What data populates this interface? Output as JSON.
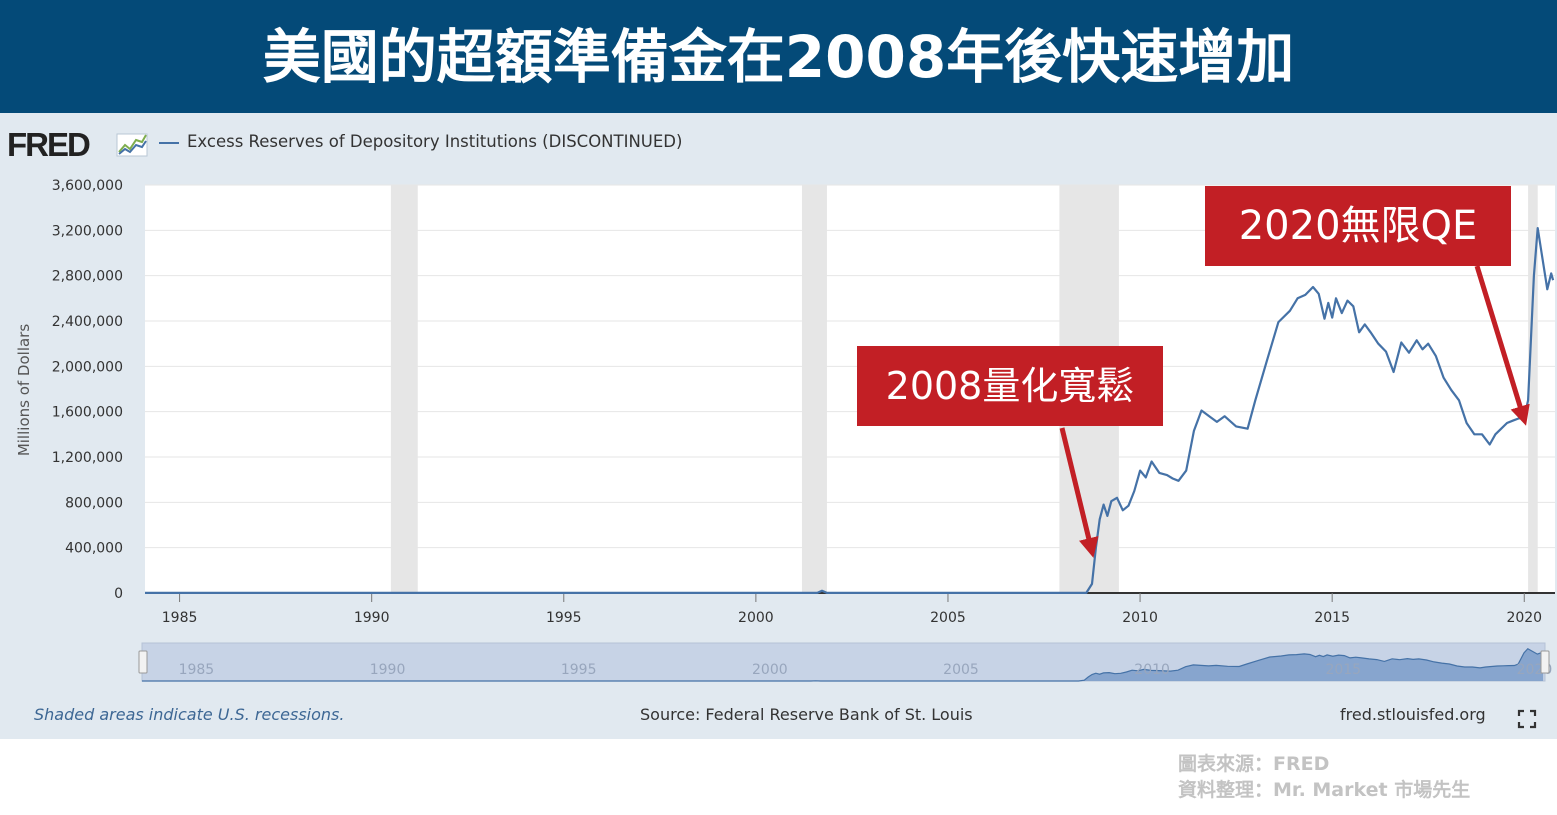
{
  "banner": {
    "title": "美國的超額準備金在2008年後快速增加"
  },
  "header": {
    "logo_text": "FRED",
    "legend_label": "Excess Reserves of Depository Institutions (DISCONTINUED)"
  },
  "annotations": [
    {
      "label": "2008量化寬鬆",
      "points_to_year": 2008.75
    },
    {
      "label": "2020無限QE",
      "points_to_year": 2020.0
    }
  ],
  "footer": {
    "note": "Shaded areas indicate U.S. recessions.",
    "source": "Source: Federal Reserve Bank of St. Louis",
    "site": "fred.stlouisfed.org"
  },
  "credit": {
    "line1": "圖表來源：FRED",
    "line2": "資料整理：Mr. Market 市場先生"
  },
  "colors": {
    "banner": "#044a78",
    "panel": "#e1e9f0",
    "line": "#4572a7",
    "recession": "#e6e6e6",
    "callout": "#c21f25"
  },
  "chart_data": {
    "type": "line",
    "title": "Excess Reserves of Depository Institutions (DISCONTINUED)",
    "xlabel": "",
    "ylabel": "Millions of Dollars",
    "xlim": [
      1984.1,
      2020.8
    ],
    "ylim": [
      0,
      3600000
    ],
    "yticks": [
      0,
      400000,
      800000,
      1200000,
      1600000,
      2000000,
      2400000,
      2800000,
      3200000,
      3600000
    ],
    "ytick_labels": [
      "0",
      "400,000",
      "800,000",
      "1,200,000",
      "1,600,000",
      "2,000,000",
      "2,400,000",
      "2,800,000",
      "3,200,000",
      "3,600,000"
    ],
    "xticks": [
      1985,
      1990,
      1995,
      2000,
      2005,
      2010,
      2015,
      2020
    ],
    "xtick_labels": [
      "1985",
      "1990",
      "1995",
      "2000",
      "2005",
      "2010",
      "2015",
      "2020"
    ],
    "navigator_labels": [
      "1985",
      "1990",
      "1995",
      "2000",
      "2005",
      "2010",
      "2015",
      "2020"
    ],
    "recessions": [
      [
        1990.5,
        1991.2
      ],
      [
        2001.2,
        2001.85
      ],
      [
        2007.9,
        2009.45
      ],
      [
        2020.1,
        2020.35
      ]
    ],
    "series": [
      {
        "name": "Excess Reserves of Depository Institutions (DISCONTINUED)",
        "x": [
          1984.1,
          2001.6,
          2001.72,
          2001.85,
          2008.6,
          2008.75,
          2008.85,
          2008.95,
          2009.05,
          2009.15,
          2009.25,
          2009.4,
          2009.55,
          2009.7,
          2009.85,
          2010.0,
          2010.15,
          2010.3,
          2010.5,
          2010.7,
          2010.85,
          2011.0,
          2011.2,
          2011.4,
          2011.6,
          2011.8,
          2012.0,
          2012.2,
          2012.5,
          2012.8,
          2013.0,
          2013.3,
          2013.6,
          2013.9,
          2014.1,
          2014.3,
          2014.5,
          2014.65,
          2014.8,
          2014.9,
          2015.0,
          2015.1,
          2015.25,
          2015.4,
          2015.55,
          2015.7,
          2015.85,
          2016.0,
          2016.2,
          2016.4,
          2016.6,
          2016.8,
          2017.0,
          2017.2,
          2017.35,
          2017.5,
          2017.7,
          2017.9,
          2018.1,
          2018.3,
          2018.5,
          2018.7,
          2018.9,
          2019.1,
          2019.25,
          2019.4,
          2019.55,
          2019.7,
          2019.85,
          2020.0,
          2020.1,
          2020.25,
          2020.35,
          2020.45,
          2020.6,
          2020.7,
          2020.75
        ],
        "values": [
          1000,
          1000,
          20000,
          1000,
          1000,
          80000,
          400000,
          650000,
          780000,
          680000,
          810000,
          840000,
          730000,
          770000,
          900000,
          1080000,
          1020000,
          1160000,
          1060000,
          1040000,
          1010000,
          990000,
          1080000,
          1430000,
          1610000,
          1560000,
          1510000,
          1560000,
          1470000,
          1450000,
          1700000,
          2050000,
          2390000,
          2490000,
          2600000,
          2630000,
          2700000,
          2640000,
          2420000,
          2560000,
          2430000,
          2600000,
          2470000,
          2580000,
          2530000,
          2300000,
          2370000,
          2300000,
          2200000,
          2130000,
          1950000,
          2210000,
          2120000,
          2230000,
          2150000,
          2200000,
          2090000,
          1900000,
          1790000,
          1700000,
          1500000,
          1400000,
          1400000,
          1310000,
          1400000,
          1450000,
          1500000,
          1520000,
          1540000,
          1550000,
          1700000,
          2800000,
          3220000,
          3000000,
          2680000,
          2820000,
          2760000
        ]
      }
    ]
  }
}
